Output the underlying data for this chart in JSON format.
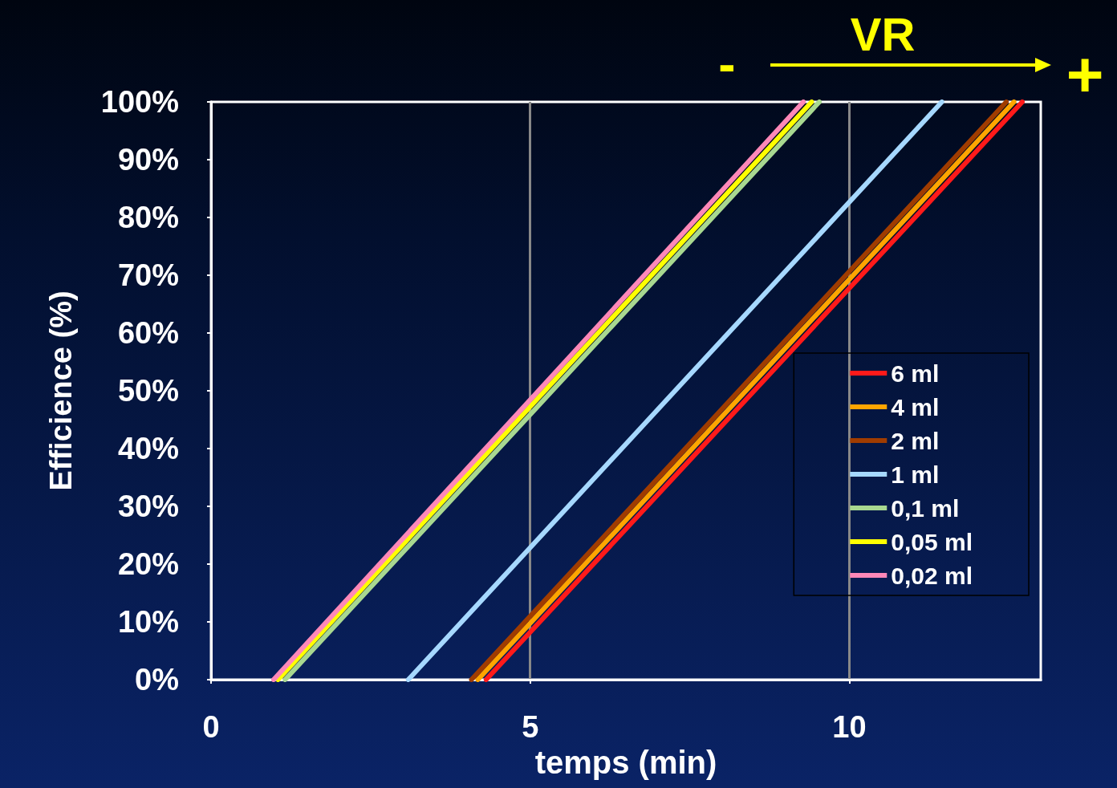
{
  "chart_data": {
    "type": "line",
    "xlabel": "temps (min)",
    "ylabel": "Efficience (%)",
    "xlim": [
      0,
      13
    ],
    "xticks": [
      0,
      5,
      10
    ],
    "ylim": [
      0,
      100
    ],
    "yticks": [
      {
        "value": 0,
        "label": "0%"
      },
      {
        "value": 10,
        "label": "10%"
      },
      {
        "value": 20,
        "label": "20%"
      },
      {
        "value": 30,
        "label": "30%"
      },
      {
        "value": 40,
        "label": "40%"
      },
      {
        "value": 50,
        "label": "50%"
      },
      {
        "value": 60,
        "label": "60%"
      },
      {
        "value": 70,
        "label": "70%"
      },
      {
        "value": 80,
        "label": "80%"
      },
      {
        "value": 90,
        "label": "90%"
      },
      {
        "value": 100,
        "label": "100%"
      }
    ],
    "grid": "x",
    "legend": "bottom right",
    "marker": "none",
    "line_style": "solid",
    "annotations": [
      "VR",
      "-",
      "+"
    ],
    "series": [
      {
        "name": "6 ml",
        "color": "#ff1a1a",
        "x": [
          4.31,
          12.71
        ],
        "values": [
          0,
          100
        ]
      },
      {
        "name": "4 ml",
        "color": "#ffa500",
        "x": [
          4.18,
          12.58
        ],
        "values": [
          0,
          100
        ]
      },
      {
        "name": "2 ml",
        "color": "#a03c00",
        "x": [
          4.08,
          12.46
        ],
        "values": [
          0,
          100
        ]
      },
      {
        "name": "1 ml",
        "color": "#a6d8ff",
        "x": [
          3.09,
          11.45
        ],
        "values": [
          0,
          100
        ]
      },
      {
        "name": "0,1 ml",
        "color": "#a8d890",
        "x": [
          1.16,
          9.53
        ],
        "values": [
          0,
          100
        ]
      },
      {
        "name": "0,05 ml",
        "color": "#ffff00",
        "x": [
          1.05,
          9.41
        ],
        "values": [
          0,
          100
        ]
      },
      {
        "name": "0,02 ml",
        "color": "#ff88b8",
        "x": [
          0.98,
          9.28
        ],
        "values": [
          0,
          100
        ]
      }
    ]
  }
}
